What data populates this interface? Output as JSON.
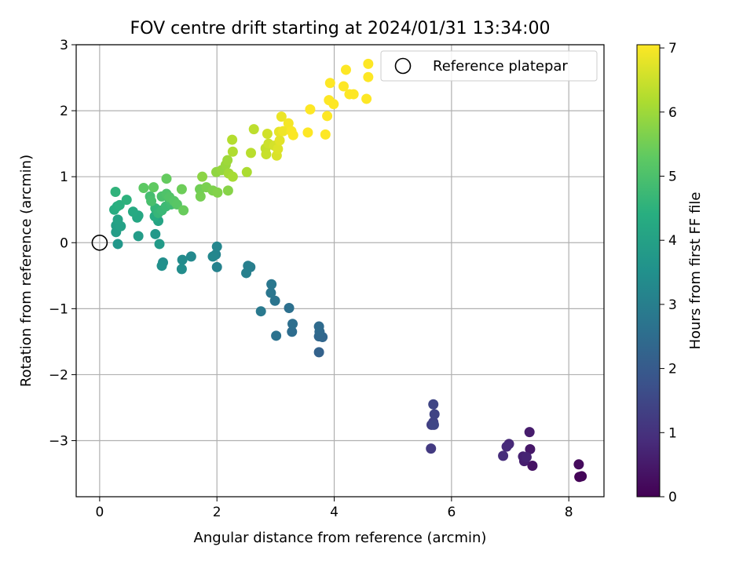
{
  "chart_data": {
    "type": "scatter",
    "title": "FOV centre drift starting at 2024/01/31 13:34:00",
    "xlabel": "Angular distance from reference (arcmin)",
    "ylabel": "Rotation from reference (arcmin)",
    "xlim": [
      -0.4,
      8.6
    ],
    "ylim": [
      -3.85,
      3.0
    ],
    "xticks": [
      0,
      2,
      4,
      6,
      8
    ],
    "yticks": [
      -3,
      -2,
      -1,
      0,
      1,
      2,
      3
    ],
    "xtick_labels": [
      "0",
      "2",
      "4",
      "6",
      "8"
    ],
    "ytick_labels": [
      "−3",
      "−2",
      "−1",
      "0",
      "1",
      "2",
      "3"
    ],
    "grid": true,
    "legend": {
      "location": "upper-right",
      "entries": [
        "Reference platepar"
      ]
    },
    "reference_point": {
      "x": 0,
      "y": 0,
      "marker": "open-circle",
      "label": "Reference platepar"
    },
    "colorbar": {
      "label": "Hours from first FF file",
      "range": [
        0,
        7.05
      ],
      "ticks": [
        0,
        1,
        2,
        3,
        4,
        5,
        6,
        7
      ],
      "tick_labels": [
        "0",
        "1",
        "2",
        "3",
        "4",
        "5",
        "6",
        "7"
      ],
      "colormap": "viridis"
    },
    "points": [
      {
        "x": 8.18,
        "y": -3.55,
        "h": 0.05
      },
      {
        "x": 8.22,
        "y": -3.54,
        "h": 0.1
      },
      {
        "x": 8.17,
        "y": -3.36,
        "h": 0.2
      },
      {
        "x": 7.38,
        "y": -3.38,
        "h": 0.35
      },
      {
        "x": 7.34,
        "y": -3.13,
        "h": 0.45
      },
      {
        "x": 7.33,
        "y": -2.87,
        "h": 0.55
      },
      {
        "x": 7.24,
        "y": -3.31,
        "h": 0.6
      },
      {
        "x": 7.22,
        "y": -3.24,
        "h": 0.65
      },
      {
        "x": 7.28,
        "y": -3.25,
        "h": 0.7
      },
      {
        "x": 6.98,
        "y": -3.05,
        "h": 0.8
      },
      {
        "x": 6.94,
        "y": -3.09,
        "h": 0.85
      },
      {
        "x": 6.88,
        "y": -3.23,
        "h": 0.9
      },
      {
        "x": 5.65,
        "y": -3.12,
        "h": 1.2
      },
      {
        "x": 5.66,
        "y": -2.76,
        "h": 1.3
      },
      {
        "x": 5.69,
        "y": -2.72,
        "h": 1.35
      },
      {
        "x": 5.71,
        "y": -2.6,
        "h": 1.4
      },
      {
        "x": 5.69,
        "y": -2.45,
        "h": 1.45
      },
      {
        "x": 5.7,
        "y": -2.76,
        "h": 1.5
      },
      {
        "x": 3.74,
        "y": -1.66,
        "h": 2.2
      },
      {
        "x": 3.8,
        "y": -1.43,
        "h": 2.3
      },
      {
        "x": 3.74,
        "y": -1.42,
        "h": 2.35
      },
      {
        "x": 3.75,
        "y": -1.35,
        "h": 2.4
      },
      {
        "x": 3.74,
        "y": -1.27,
        "h": 2.45
      },
      {
        "x": 3.28,
        "y": -1.35,
        "h": 2.5
      },
      {
        "x": 3.29,
        "y": -1.23,
        "h": 2.55
      },
      {
        "x": 3.23,
        "y": -0.99,
        "h": 2.6
      },
      {
        "x": 3.01,
        "y": -1.41,
        "h": 2.65
      },
      {
        "x": 2.99,
        "y": -0.88,
        "h": 2.7
      },
      {
        "x": 2.92,
        "y": -0.76,
        "h": 2.75
      },
      {
        "x": 2.93,
        "y": -0.63,
        "h": 2.8
      },
      {
        "x": 2.75,
        "y": -1.04,
        "h": 2.85
      },
      {
        "x": 2.57,
        "y": -0.37,
        "h": 2.95
      },
      {
        "x": 2.53,
        "y": -0.35,
        "h": 3.0
      },
      {
        "x": 2.5,
        "y": -0.46,
        "h": 3.05
      },
      {
        "x": 2.0,
        "y": -0.37,
        "h": 3.1
      },
      {
        "x": 1.98,
        "y": -0.18,
        "h": 3.15
      },
      {
        "x": 2.0,
        "y": -0.06,
        "h": 3.2
      },
      {
        "x": 1.93,
        "y": -0.21,
        "h": 3.25
      },
      {
        "x": 1.56,
        "y": -0.21,
        "h": 3.3
      },
      {
        "x": 1.41,
        "y": -0.26,
        "h": 3.35
      },
      {
        "x": 1.4,
        "y": -0.4,
        "h": 3.4
      },
      {
        "x": 1.08,
        "y": -0.3,
        "h": 3.45
      },
      {
        "x": 1.06,
        "y": -0.35,
        "h": 3.5
      },
      {
        "x": 0.31,
        "y": -0.02,
        "h": 3.7
      },
      {
        "x": 0.95,
        "y": 0.13,
        "h": 3.75
      },
      {
        "x": 1.02,
        "y": -0.02,
        "h": 3.8
      },
      {
        "x": 0.66,
        "y": 0.1,
        "h": 3.85
      },
      {
        "x": 0.28,
        "y": 0.16,
        "h": 3.9
      },
      {
        "x": 0.28,
        "y": 0.26,
        "h": 3.95
      },
      {
        "x": 0.36,
        "y": 0.25,
        "h": 4.0
      },
      {
        "x": 0.31,
        "y": 0.35,
        "h": 4.05
      },
      {
        "x": 1.0,
        "y": 0.33,
        "h": 4.1
      },
      {
        "x": 0.64,
        "y": 0.38,
        "h": 4.15
      },
      {
        "x": 0.66,
        "y": 0.41,
        "h": 4.2
      },
      {
        "x": 0.57,
        "y": 0.47,
        "h": 4.25
      },
      {
        "x": 0.94,
        "y": 0.4,
        "h": 4.3
      },
      {
        "x": 0.25,
        "y": 0.5,
        "h": 4.35
      },
      {
        "x": 0.3,
        "y": 0.55,
        "h": 4.4
      },
      {
        "x": 0.34,
        "y": 0.57,
        "h": 4.45
      },
      {
        "x": 0.46,
        "y": 0.65,
        "h": 4.5
      },
      {
        "x": 0.27,
        "y": 0.77,
        "h": 4.55
      },
      {
        "x": 0.95,
        "y": 0.52,
        "h": 4.6
      },
      {
        "x": 1.0,
        "y": 0.45,
        "h": 4.65
      },
      {
        "x": 1.06,
        "y": 0.49,
        "h": 4.7
      },
      {
        "x": 1.13,
        "y": 0.55,
        "h": 4.75
      },
      {
        "x": 1.22,
        "y": 0.58,
        "h": 4.8
      },
      {
        "x": 1.2,
        "y": 0.64,
        "h": 4.85
      },
      {
        "x": 0.86,
        "y": 0.7,
        "h": 4.9
      },
      {
        "x": 0.88,
        "y": 0.63,
        "h": 4.95
      },
      {
        "x": 1.06,
        "y": 0.7,
        "h": 5.0
      },
      {
        "x": 1.14,
        "y": 0.74,
        "h": 5.05
      },
      {
        "x": 1.19,
        "y": 0.69,
        "h": 5.1
      },
      {
        "x": 1.27,
        "y": 0.63,
        "h": 5.15
      },
      {
        "x": 1.32,
        "y": 0.58,
        "h": 5.2
      },
      {
        "x": 0.75,
        "y": 0.83,
        "h": 5.25
      },
      {
        "x": 0.92,
        "y": 0.84,
        "h": 5.3
      },
      {
        "x": 1.14,
        "y": 0.97,
        "h": 5.35
      },
      {
        "x": 1.43,
        "y": 0.49,
        "h": 5.4
      },
      {
        "x": 1.4,
        "y": 0.81,
        "h": 5.45
      },
      {
        "x": 1.71,
        "y": 0.81,
        "h": 5.5
      },
      {
        "x": 1.72,
        "y": 0.7,
        "h": 5.55
      },
      {
        "x": 1.82,
        "y": 0.84,
        "h": 5.6
      },
      {
        "x": 1.93,
        "y": 0.79,
        "h": 5.65
      },
      {
        "x": 2.01,
        "y": 0.76,
        "h": 5.7
      },
      {
        "x": 2.19,
        "y": 0.79,
        "h": 5.75
      },
      {
        "x": 1.75,
        "y": 1.0,
        "h": 5.8
      },
      {
        "x": 1.99,
        "y": 1.07,
        "h": 5.85
      },
      {
        "x": 2.08,
        "y": 1.1,
        "h": 5.9
      },
      {
        "x": 2.15,
        "y": 1.18,
        "h": 5.95
      },
      {
        "x": 2.18,
        "y": 1.25,
        "h": 6.0
      },
      {
        "x": 2.2,
        "y": 1.05,
        "h": 6.05
      },
      {
        "x": 2.27,
        "y": 1.0,
        "h": 6.1
      },
      {
        "x": 2.51,
        "y": 1.07,
        "h": 6.15
      },
      {
        "x": 2.27,
        "y": 1.38,
        "h": 6.2
      },
      {
        "x": 2.26,
        "y": 1.56,
        "h": 6.25
      },
      {
        "x": 2.58,
        "y": 1.36,
        "h": 6.3
      },
      {
        "x": 2.63,
        "y": 1.72,
        "h": 6.35
      },
      {
        "x": 2.83,
        "y": 1.43,
        "h": 6.4
      },
      {
        "x": 2.84,
        "y": 1.34,
        "h": 6.45
      },
      {
        "x": 2.88,
        "y": 1.5,
        "h": 6.5
      },
      {
        "x": 2.86,
        "y": 1.65,
        "h": 6.55
      },
      {
        "x": 2.98,
        "y": 1.47,
        "h": 6.6
      },
      {
        "x": 3.02,
        "y": 1.32,
        "h": 6.65
      },
      {
        "x": 3.04,
        "y": 1.42,
        "h": 6.7
      },
      {
        "x": 3.07,
        "y": 1.55,
        "h": 6.75
      },
      {
        "x": 3.06,
        "y": 1.68,
        "h": 6.8
      },
      {
        "x": 3.1,
        "y": 1.91,
        "h": 6.85
      },
      {
        "x": 3.13,
        "y": 1.69,
        "h": 6.9
      },
      {
        "x": 3.22,
        "y": 1.81,
        "h": 6.95
      },
      {
        "x": 3.27,
        "y": 1.69,
        "h": 7.0
      },
      {
        "x": 3.3,
        "y": 1.63,
        "h": 7.02
      },
      {
        "x": 3.55,
        "y": 1.67,
        "h": 7.05
      },
      {
        "x": 3.59,
        "y": 2.02,
        "h": 7.07
      },
      {
        "x": 3.85,
        "y": 1.64,
        "h": 7.1
      },
      {
        "x": 3.88,
        "y": 1.92,
        "h": 7.12
      },
      {
        "x": 3.91,
        "y": 2.16,
        "h": 7.15
      },
      {
        "x": 3.99,
        "y": 2.1,
        "h": 7.17
      },
      {
        "x": 3.93,
        "y": 2.42,
        "h": 7.2
      },
      {
        "x": 4.16,
        "y": 2.37,
        "h": 7.22
      },
      {
        "x": 4.26,
        "y": 2.25,
        "h": 7.25
      },
      {
        "x": 4.33,
        "y": 2.25,
        "h": 7.27
      },
      {
        "x": 4.2,
        "y": 2.62,
        "h": 7.3
      },
      {
        "x": 4.55,
        "y": 2.18,
        "h": 7.32
      },
      {
        "x": 4.58,
        "y": 2.51,
        "h": 7.35
      },
      {
        "x": 4.58,
        "y": 2.71,
        "h": 7.4
      }
    ]
  }
}
